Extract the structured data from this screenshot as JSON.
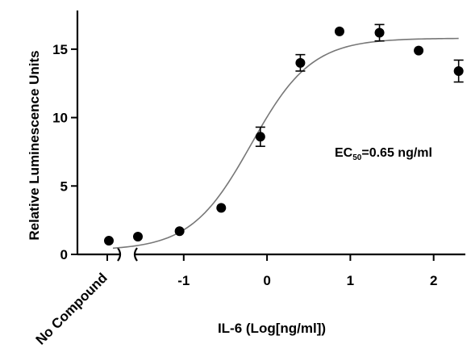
{
  "chart_data": {
    "type": "scatter",
    "title": "",
    "xlabel": "IL-6 (Log[ng/ml])",
    "ylabel": "Relative Luminescence Units",
    "xlim": [
      -1.85,
      2.4
    ],
    "ylim": [
      0,
      17
    ],
    "x_ticks": [
      -1,
      0,
      1,
      2
    ],
    "x_tick_labels": [
      "-1",
      "0",
      "1",
      "2"
    ],
    "y_ticks": [
      0,
      5,
      10,
      15
    ],
    "y_tick_labels": [
      "0",
      "5",
      "10",
      "15"
    ],
    "control": {
      "label": "No Compound",
      "value": 1.0
    },
    "annotation": {
      "main": "EC",
      "sub": "50",
      "rest": "=0.65 ng/ml"
    },
    "series": [
      {
        "points": [
          {
            "x": -1.55,
            "y": 1.3,
            "err": 0
          },
          {
            "x": -1.05,
            "y": 1.7,
            "err": 0
          },
          {
            "x": -0.55,
            "y": 3.4,
            "err": 0
          },
          {
            "x": -0.08,
            "y": 8.6,
            "err": 0.7
          },
          {
            "x": 0.4,
            "y": 14.0,
            "err": 0.6
          },
          {
            "x": 0.87,
            "y": 16.3,
            "err": 0
          },
          {
            "x": 1.35,
            "y": 16.2,
            "err": 0.6
          },
          {
            "x": 1.82,
            "y": 14.9,
            "err": 0
          },
          {
            "x": 2.3,
            "y": 13.4,
            "err": 0.8
          }
        ]
      }
    ],
    "fit": {
      "bottom": 0.3,
      "top": 15.8,
      "logEC50": -0.19,
      "hill": 1.2,
      "x_range": [
        -1.85,
        2.3
      ]
    }
  }
}
